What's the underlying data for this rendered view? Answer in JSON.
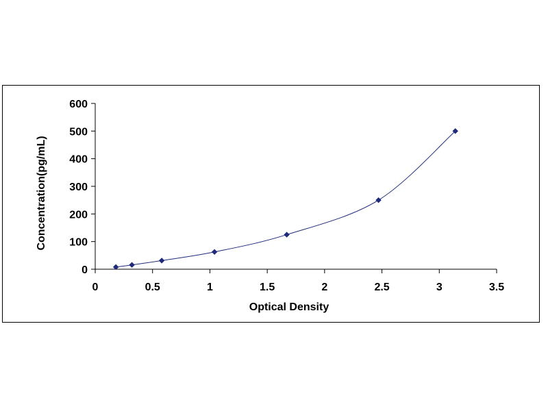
{
  "chart_data": {
    "type": "scatter",
    "title": "",
    "xlabel": "Optical Density",
    "ylabel": "Concentration(pg/mL)",
    "xlim": [
      0,
      3.5
    ],
    "ylim": [
      0,
      600
    ],
    "x_ticks": [
      "0",
      "0.5",
      "1",
      "1.5",
      "2",
      "2.5",
      "3",
      "3.5"
    ],
    "y_ticks": [
      "0",
      "100",
      "200",
      "300",
      "400",
      "500",
      "600"
    ],
    "grid": false,
    "legend": "none",
    "series": [
      {
        "points": [
          {
            "x": 0.18,
            "y": 7.8
          },
          {
            "x": 0.32,
            "y": 15.6
          },
          {
            "x": 0.58,
            "y": 31.25
          },
          {
            "x": 1.04,
            "y": 62.5
          },
          {
            "x": 1.67,
            "y": 125
          },
          {
            "x": 2.47,
            "y": 250
          },
          {
            "x": 3.14,
            "y": 500
          }
        ],
        "trendline": "smooth",
        "marker": "diamond",
        "color": "#1f2a7a"
      }
    ]
  }
}
